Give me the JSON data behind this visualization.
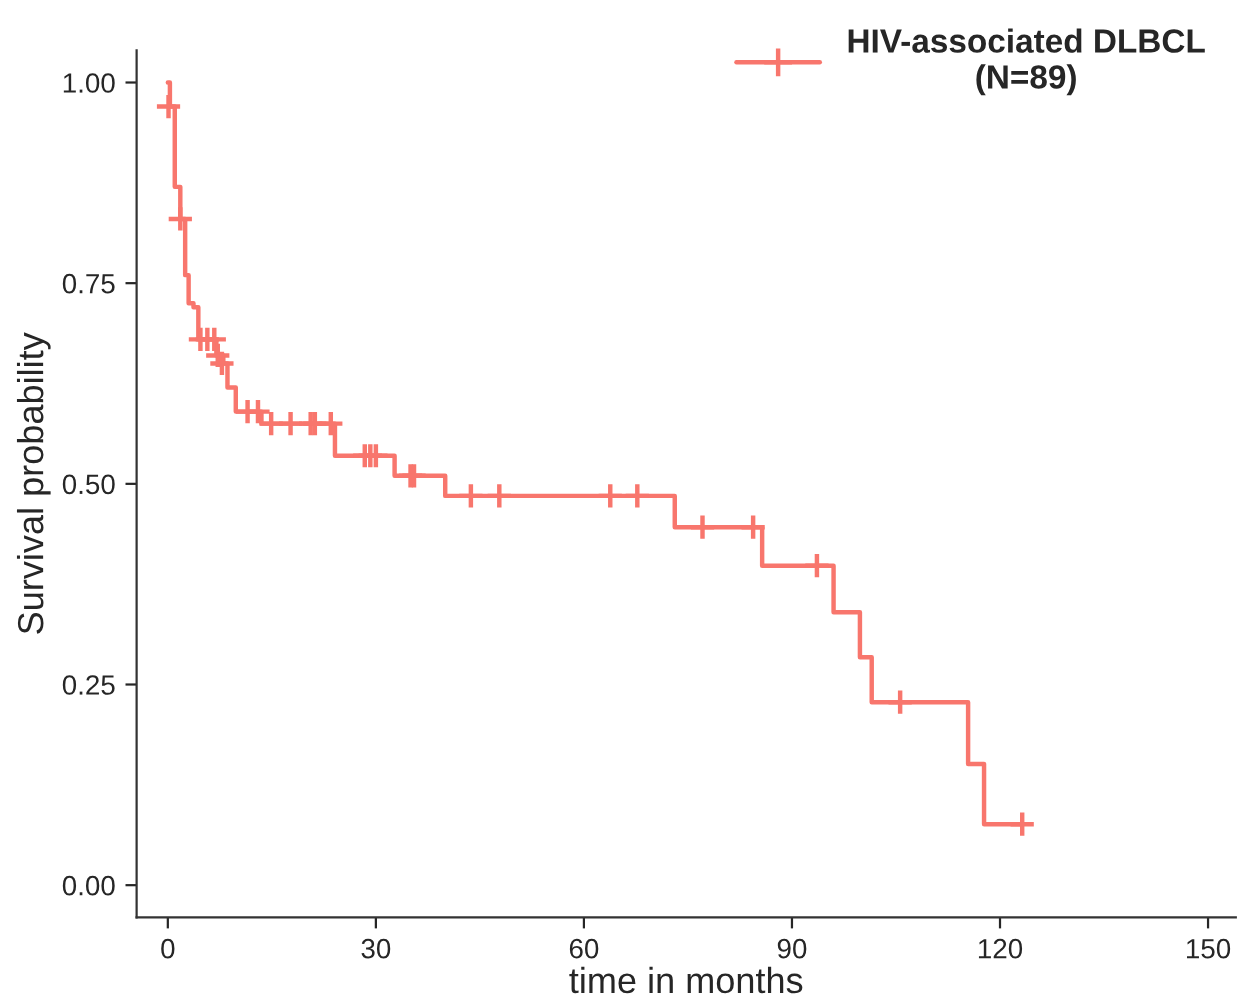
{
  "chart_data": {
    "type": "step",
    "xlabel": "time in months",
    "ylabel": "Survival probability",
    "xlim": [
      -4.5,
      154
    ],
    "xticks": [
      0,
      30,
      60,
      90,
      120,
      150
    ],
    "ylim": [
      -0.04,
      1.04
    ],
    "yticks": [
      {
        "value": 0,
        "label": "0.00"
      },
      {
        "value": 0.25,
        "label": "0.25"
      },
      {
        "value": 0.5,
        "label": "0.50"
      },
      {
        "value": 0.75,
        "label": "0.75"
      },
      {
        "value": 1,
        "label": "1.00"
      }
    ],
    "grid": false,
    "legend": "top right",
    "series": [
      {
        "name": "HIV-associated DLBCL\n(N=89)",
        "color": "#f8766d",
        "x": [
          0,
          0.3,
          1,
          1.8,
          2.5,
          3,
          3.7,
          4.4,
          7,
          8,
          8.6,
          9.8,
          13.5,
          24.1,
          32.7,
          40,
          73.1,
          85.7,
          96,
          99.8,
          101.5,
          115.4,
          117.7,
          123.2
        ],
        "values": [
          1,
          0.97,
          0.87,
          0.83,
          0.76,
          0.725,
          0.72,
          0.68,
          0.66,
          0.65,
          0.62,
          0.59,
          0.575,
          0.535,
          0.51,
          0.485,
          0.446,
          0.398,
          0.34,
          0.284,
          0.228,
          0.151,
          0.076,
          0.076
        ]
      },
      {
        "type": "scatter",
        "color": "#f8766d",
        "marker": "cross",
        "x": [
          0.1,
          1.8,
          4.7,
          5.7,
          6.7,
          7.2,
          7.8,
          11.5,
          13,
          14.9,
          17.7,
          20.6,
          21.2,
          23.5,
          28.4,
          29.2,
          30,
          35,
          35.5,
          43.7,
          47.8,
          63.8,
          67.7,
          77.1,
          84.4,
          93.6,
          105.6,
          123.2
        ],
        "values": [
          0.97,
          0.83,
          0.68,
          0.68,
          0.68,
          0.66,
          0.65,
          0.59,
          0.59,
          0.575,
          0.575,
          0.575,
          0.575,
          0.575,
          0.535,
          0.535,
          0.535,
          0.51,
          0.51,
          0.485,
          0.485,
          0.485,
          0.485,
          0.446,
          0.446,
          0.398,
          0.228,
          0.076
        ]
      }
    ]
  }
}
